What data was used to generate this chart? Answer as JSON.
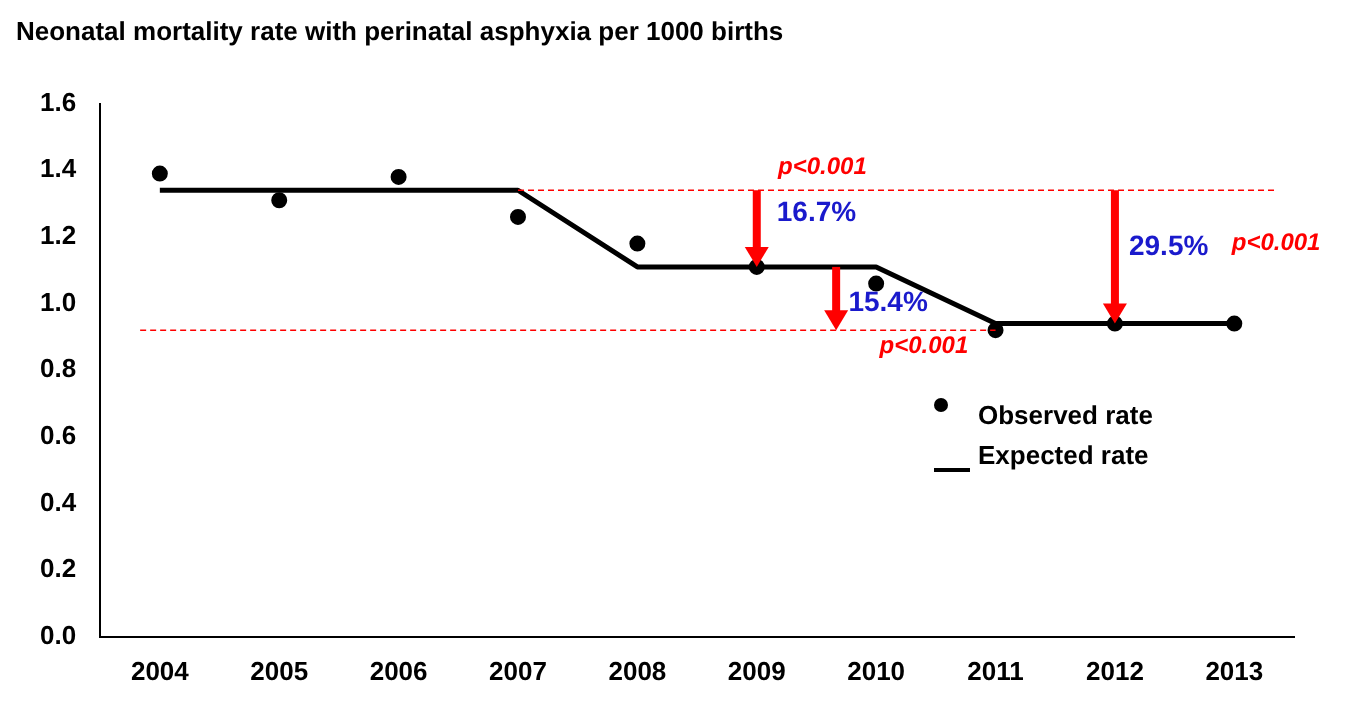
{
  "chart_data": {
    "type": "scatter",
    "title": "Neonatal mortality rate with perinatal asphyxia per 1000 births",
    "categories": [
      "2004",
      "2005",
      "2006",
      "2007",
      "2008",
      "2009",
      "2010",
      "2011",
      "2012",
      "2013"
    ],
    "series": [
      {
        "name": "Observed rate",
        "marker": "circle",
        "color": "#000000",
        "values": [
          1.39,
          1.31,
          1.38,
          1.26,
          1.18,
          1.11,
          1.06,
          0.92,
          0.94,
          0.94
        ]
      },
      {
        "name": "Expected rate",
        "type": "line",
        "color": "#000000",
        "values": [
          1.34,
          1.34,
          1.34,
          1.34,
          1.11,
          1.11,
          1.11,
          0.94,
          0.94,
          0.94
        ]
      }
    ],
    "ylim": [
      0,
      1.6
    ],
    "yticks": [
      {
        "value": 0,
        "label": "0.0"
      },
      0.2,
      0.4,
      0.6,
      0.8,
      {
        "value": 1,
        "label": "1.0"
      },
      1.2,
      1.4,
      1.6
    ],
    "ref_lines": [
      {
        "axis": "y",
        "value": 1.34,
        "color": "#ff0000",
        "line_style": "dashed"
      },
      {
        "axis": "y",
        "value": 0.92,
        "color": "#ff0000",
        "line_style": "dashed"
      }
    ],
    "annotations": [
      "p<0.001",
      "16.7%",
      "15.4%",
      "p<0.001",
      "29.5%",
      "p<0.001"
    ],
    "grid": false,
    "legend": "bottom right",
    "line_style": "solid"
  }
}
